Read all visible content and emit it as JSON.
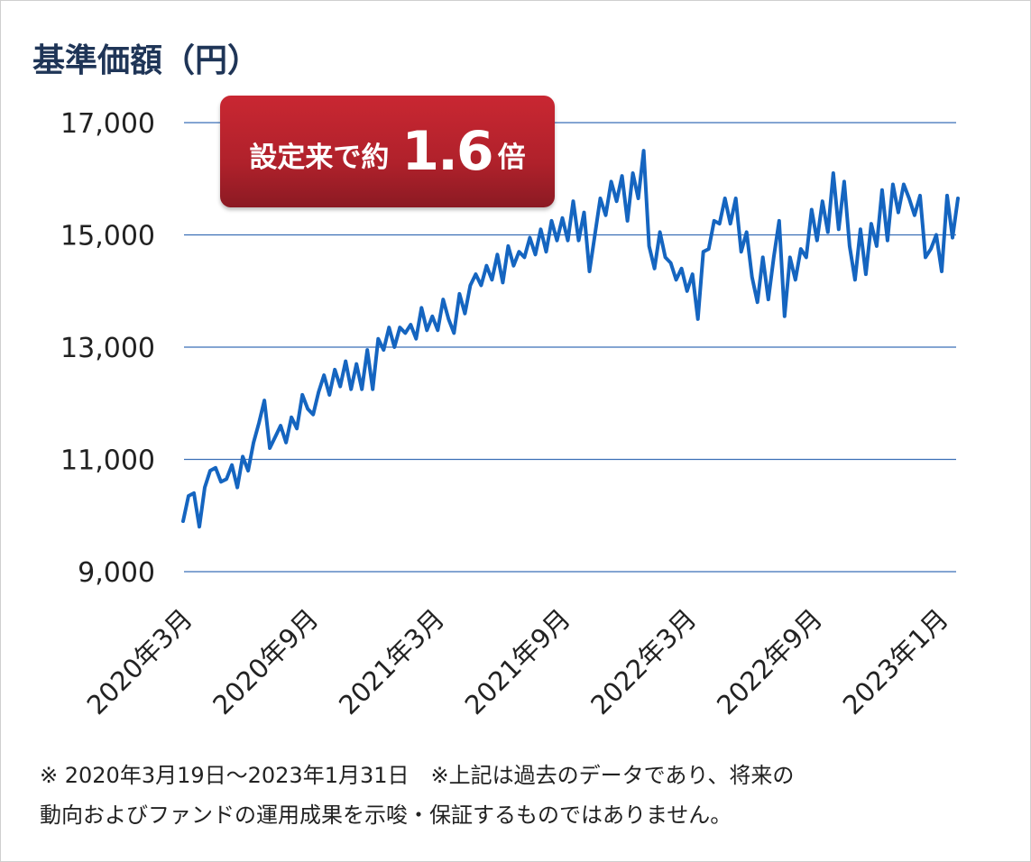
{
  "chart_data": {
    "type": "line",
    "title": "",
    "ylabel": "基準価額（円）",
    "xlabel": "",
    "ylim": [
      8000,
      17000
    ],
    "yticks": [
      9000,
      11000,
      13000,
      15000,
      17000
    ],
    "ytick_labels": [
      "9,000",
      "11,000",
      "13,000",
      "15,000",
      "17,000"
    ],
    "xtick_labels": [
      "2020年3月",
      "2020年9月",
      "2021年3月",
      "2021年9月",
      "2022年3月",
      "2022年9月",
      "2023年1月"
    ],
    "grid": true,
    "line_color": "#1565c0",
    "grid_color": "#3b6fb6",
    "series": [
      {
        "name": "",
        "values": [
          9900,
          10350,
          10400,
          9800,
          10500,
          10800,
          10850,
          10600,
          10650,
          10900,
          10500,
          11050,
          10800,
          11300,
          11650,
          12050,
          11200,
          11400,
          11600,
          11300,
          11750,
          11550,
          12150,
          11900,
          11800,
          12200,
          12500,
          12150,
          12600,
          12300,
          12750,
          12250,
          12700,
          12250,
          12950,
          12250,
          13150,
          12950,
          13350,
          13000,
          13350,
          13250,
          13400,
          13150,
          13700,
          13300,
          13550,
          13300,
          13850,
          13500,
          13250,
          13950,
          13600,
          14100,
          14300,
          14100,
          14450,
          14200,
          14650,
          14150,
          14800,
          14450,
          14700,
          14600,
          14950,
          14650,
          15100,
          14700,
          15250,
          14900,
          15300,
          14900,
          15600,
          14900,
          15400,
          14350,
          15000,
          15650,
          15350,
          15950,
          15600,
          16050,
          15250,
          16100,
          15650,
          16500,
          14800,
          14400,
          15050,
          14600,
          14500,
          14200,
          14400,
          14000,
          14300,
          13500,
          14700,
          14750,
          15250,
          15200,
          15650,
          15200,
          15650,
          14700,
          15050,
          14250,
          13800,
          14600,
          13850,
          14600,
          15250,
          13550,
          14600,
          14200,
          14750,
          14600,
          15450,
          14900,
          15600,
          15050,
          16100,
          15100,
          15950,
          14800,
          14200,
          15100,
          14300,
          15200,
          14800,
          15800,
          14900,
          15900,
          15400,
          15900,
          15650,
          15350,
          15700,
          14600,
          14750,
          15000,
          14350,
          15700,
          14950,
          15650
        ]
      }
    ]
  },
  "callout": {
    "prefix": "設定来で約",
    "number": "1.6",
    "suffix": "倍"
  },
  "footnote": {
    "line1": "※ 2020年3月19日～2023年1月31日　※上記は過去のデータであり、将来の",
    "line2": "動向およびファンドの運用成果を示唆・保証するものではありません。"
  }
}
